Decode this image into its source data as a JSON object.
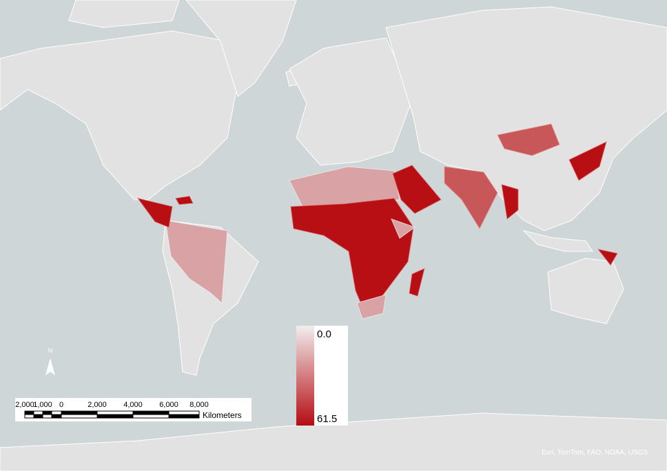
{
  "legend": {
    "ticks": [
      {
        "value": 0,
        "label": "0.0"
      },
      {
        "value": 61.5,
        "label": "61.5"
      }
    ],
    "min_color": "#f2eeee",
    "max_color": "#b40c12"
  },
  "scale_bar": {
    "labels": [
      "2,000",
      "1,000",
      "0",
      "2,000",
      "4,000",
      "6,000",
      "8,000"
    ],
    "unit": "Kilometers"
  },
  "north_arrow": "N",
  "attribution": "Esri, TomTom, FAO, NOAA, USGS"
}
